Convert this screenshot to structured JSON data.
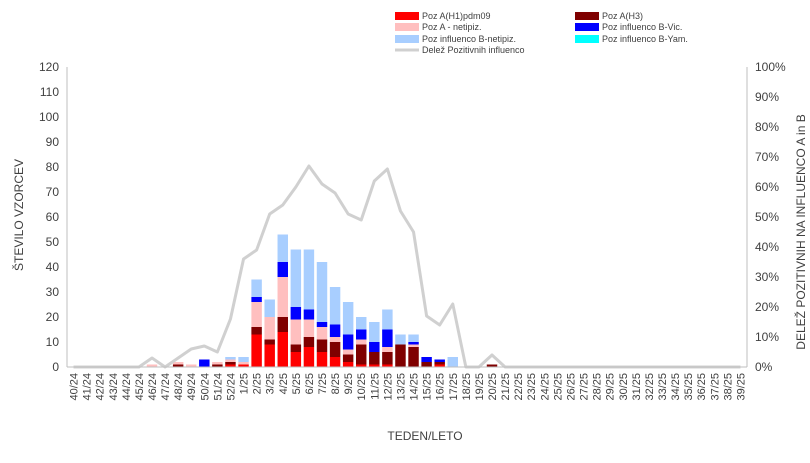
{
  "chart_data": {
    "type": "bar",
    "stacked": true,
    "xlabel": "TEDEN/LETO",
    "ylabel": "ŠTEVILO VZORCEV",
    "y2label": "DELEŽ POZITIVNIH NA INFLUENCO A in B",
    "ylim": [
      0,
      120
    ],
    "y2lim": [
      0,
      100
    ],
    "yticks": [
      "0",
      "10",
      "20",
      "30",
      "40",
      "50",
      "60",
      "70",
      "80",
      "90",
      "100",
      "110",
      "120"
    ],
    "y2ticks": [
      "0%",
      "10%",
      "20%",
      "30%",
      "40%",
      "50%",
      "60%",
      "70%",
      "80%",
      "90%",
      "100%"
    ],
    "grid": false,
    "legend_position": "top",
    "categories": [
      "40/24",
      "41/24",
      "42/24",
      "43/24",
      "44/24",
      "45/24",
      "46/24",
      "47/24",
      "48/24",
      "49/24",
      "50/24",
      "51/24",
      "52/24",
      "1/25",
      "2/25",
      "3/25",
      "4/25",
      "5/25",
      "6/25",
      "7/25",
      "8/25",
      "9/25",
      "10/25",
      "11/25",
      "12/25",
      "13/25",
      "14/25",
      "15/25",
      "16/25",
      "17/25",
      "18/25",
      "19/25",
      "20/25",
      "21/25",
      "22/25",
      "23/25",
      "24/25",
      "25/25",
      "26/25",
      "27/25",
      "28/25",
      "29/25",
      "30/25",
      "31/25",
      "32/25",
      "33/25",
      "34/25",
      "35/25",
      "36/25",
      "37/25",
      "38/25",
      "39/25"
    ],
    "series": [
      {
        "name": "Poz A(H1)pdm09",
        "color": "#ff0000",
        "kind": "bar",
        "values": [
          0,
          0,
          0,
          0,
          0,
          0,
          0,
          0,
          0,
          0,
          0,
          0,
          1,
          1,
          13,
          9,
          14,
          6,
          8,
          6,
          4,
          2,
          1,
          1,
          1,
          0,
          0,
          0,
          1,
          0,
          0,
          0,
          0,
          0,
          0,
          0,
          0,
          0,
          0,
          0,
          0,
          0,
          0,
          0,
          0,
          0,
          0,
          0,
          0,
          0,
          0,
          0
        ]
      },
      {
        "name": "Poz A(H3)",
        "color": "#7f0000",
        "kind": "bar",
        "values": [
          0,
          0,
          0,
          0,
          0,
          0,
          0,
          0,
          1,
          0,
          0,
          1,
          1,
          0,
          3,
          2,
          6,
          3,
          4,
          5,
          6,
          3,
          8,
          5,
          5,
          9,
          8,
          2,
          1,
          0,
          0,
          0,
          1,
          0,
          0,
          0,
          0,
          0,
          0,
          0,
          0,
          0,
          0,
          0,
          0,
          0,
          0,
          0,
          0,
          0,
          0,
          0
        ]
      },
      {
        "name": "Poz A - netipiz.",
        "color": "#ffbfbf",
        "kind": "bar",
        "values": [
          0,
          0,
          0,
          0,
          0,
          0,
          1,
          0,
          1,
          1,
          0,
          1,
          1,
          1,
          10,
          9,
          16,
          10,
          7,
          5,
          2,
          2,
          2,
          0,
          2,
          0,
          1,
          0,
          0,
          0,
          0,
          0,
          0,
          0,
          0,
          0,
          0,
          0,
          0,
          0,
          0,
          0,
          0,
          0,
          0,
          0,
          0,
          0,
          0,
          0,
          0,
          0
        ]
      },
      {
        "name": "Poz influenco B-Vic.",
        "color": "#0000ff",
        "kind": "bar",
        "values": [
          0,
          0,
          0,
          0,
          0,
          0,
          0,
          0,
          0,
          0,
          3,
          0,
          0,
          0,
          2,
          0,
          6,
          5,
          4,
          2,
          5,
          6,
          4,
          4,
          7,
          0,
          1,
          2,
          1,
          0,
          0,
          0,
          0,
          0,
          0,
          0,
          0,
          0,
          0,
          0,
          0,
          0,
          0,
          0,
          0,
          0,
          0,
          0,
          0,
          0,
          0,
          0
        ]
      },
      {
        "name": "Poz influenco B-netipiz.",
        "color": "#a8ceff",
        "kind": "bar",
        "values": [
          0,
          0,
          0,
          0,
          0,
          0,
          0,
          0,
          0,
          0,
          0,
          0,
          1,
          2,
          7,
          7,
          11,
          23,
          24,
          24,
          15,
          13,
          5,
          8,
          8,
          4,
          3,
          0,
          0,
          4,
          0,
          0,
          0,
          0,
          0,
          0,
          0,
          0,
          0,
          0,
          0,
          0,
          0,
          0,
          0,
          0,
          0,
          0,
          0,
          0,
          0,
          0
        ]
      },
      {
        "name": "Poz influenco B-Yam.",
        "color": "#00ffff",
        "kind": "bar",
        "values": [
          0,
          0,
          0,
          0,
          0,
          0,
          0,
          0,
          0,
          0,
          0,
          0,
          0,
          0,
          0,
          0,
          0,
          0,
          0,
          0,
          0,
          0,
          0,
          0,
          0,
          0,
          0,
          0,
          0,
          0,
          0,
          0,
          0,
          0,
          0,
          0,
          0,
          0,
          0,
          0,
          0,
          0,
          0,
          0,
          0,
          0,
          0,
          0,
          0,
          0,
          0,
          0
        ]
      },
      {
        "name": "Delež Pozitivnih influenco",
        "color": "#d0d0d0",
        "kind": "line",
        "axis": "right",
        "values": [
          0,
          0,
          0,
          0,
          0,
          0,
          3,
          0,
          3,
          6,
          7,
          5,
          16,
          36,
          39,
          51,
          54,
          60,
          67,
          61,
          58,
          51,
          49,
          62,
          66,
          52,
          45,
          17,
          14,
          21,
          0,
          0,
          4,
          0,
          0,
          0,
          0,
          0,
          0,
          0,
          0,
          0,
          0,
          0,
          0,
          0,
          0,
          0,
          0,
          0,
          0,
          0
        ]
      }
    ]
  }
}
